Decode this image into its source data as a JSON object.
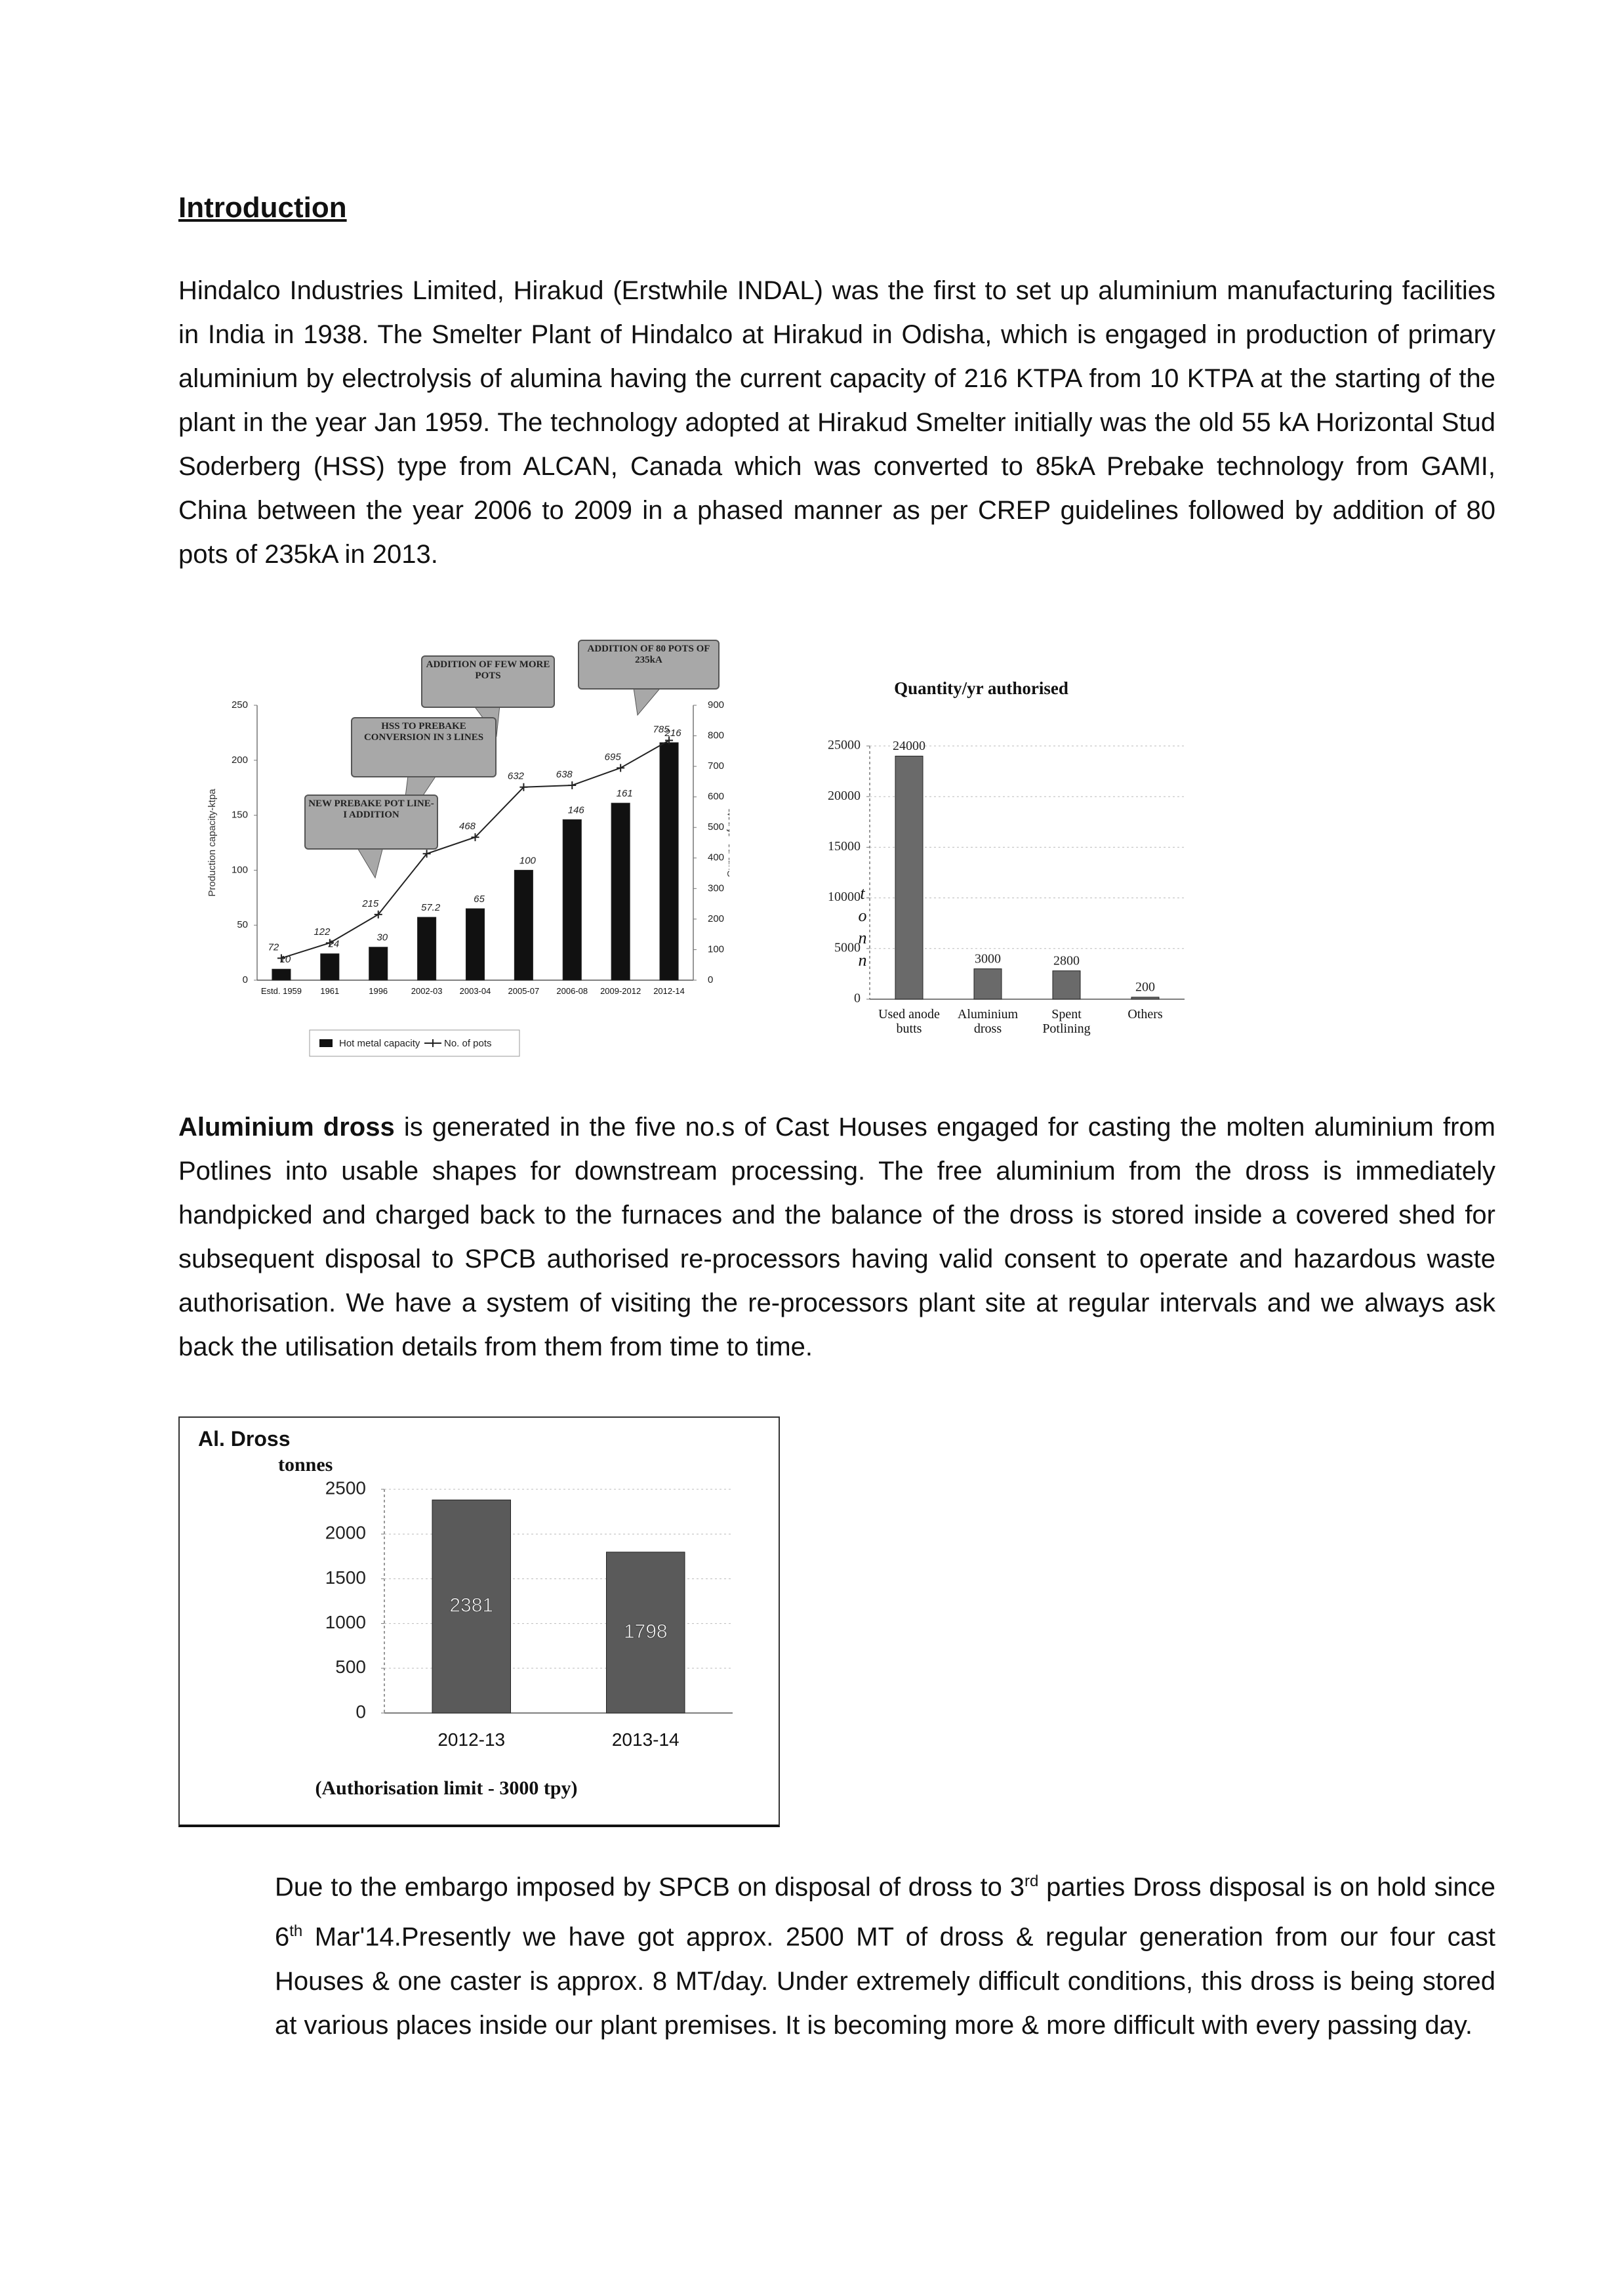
{
  "heading": "Introduction",
  "paragraph_1": "Hindalco Industries Limited, Hirakud (Erstwhile INDAL) was the first to set up aluminium manufacturing facilities in India in 1938. The Smelter Plant of Hindalco at Hirakud in Odisha, which is engaged in production of primary aluminium by electrolysis of alumina having the current capacity of 216 KTPA from 10 KTPA at the starting of the plant in the year Jan 1959. The technology adopted at Hirakud Smelter initially was the old 55 kA Horizontal Stud Soderberg (HSS) type from ALCAN, Canada which was converted to 85kA Prebake technology from GAMI, China between the year 2006 to 2009 in a phased manner as per CREP guidelines followed by addition of 80 pots of 235kA in 2013.",
  "paragraph_2": {
    "bold": "Aluminium dross",
    "text": " is generated in the five no.s of Cast Houses engaged for casting the molten aluminium from Potlines into usable shapes for downstream processing. The free aluminium from the dross is immediately handpicked and charged back to the furnaces and the balance of the dross is stored inside a covered shed for subsequent disposal to SPCB authorised re-processors having valid consent to operate and hazardous waste authorisation. We have a system of visiting the re-processors plant site at regular intervals and we always ask back the utilisation details from them from time to time."
  },
  "paragraph_3": [
    "Due to the embargo imposed by SPCB on disposal of dross to 3",
    "rd",
    " parties Dross disposal is on hold since 6",
    "th",
    " Mar'14.Presently we have got approx.  2500 MT of dross & regular generation from our four cast Houses & one caster is approx. 8 MT/day. Under extremely difficult conditions, this dross is being stored at various places inside our plant premises. It is becoming more & more difficult with every passing day."
  ],
  "chart_data": [
    {
      "type": "combo",
      "y_label": "Production capacity-ktpa",
      "y2_label": "Cum no. of pots",
      "categories": [
        "Estd. 1959",
        "1961",
        "1996",
        "2002-03",
        "2003-04",
        "2005-07",
        "2006-08",
        "2009-2012",
        "2012-14"
      ],
      "series": [
        {
          "name": "Hot metal capacity",
          "type": "bar",
          "color": "#111111",
          "values": [
            10,
            24,
            30,
            57.2,
            65,
            100,
            146,
            161,
            216
          ]
        },
        {
          "name": "No. of pots",
          "type": "line",
          "axis": "y2",
          "color": "#222222",
          "values": [
            72,
            122,
            215,
            414,
            468,
            632,
            638,
            695,
            785
          ]
        }
      ],
      "annotations": [
        "NEW PREBAKE POT LINE-I ADDITION",
        "HSS TO PREBAKE CONVERSION IN 3 LINES",
        "ADDITION OF FEW MORE POTS",
        "ADDITION OF 80 POTS OF 235kA"
      ],
      "ylim": [
        0,
        250
      ],
      "yticks": [
        0,
        50,
        100,
        150,
        200,
        250
      ],
      "y2lim": [
        0,
        900
      ],
      "y2ticks": [
        0,
        100,
        200,
        300,
        400,
        500,
        600,
        700,
        800,
        900
      ],
      "data_labels": true,
      "grid": false,
      "legend": "bottom"
    },
    {
      "type": "bar",
      "title": "Quantity/yr authorised",
      "y_label": "tonn",
      "categories": [
        "Used anode butts",
        "Aluminium dross",
        "Spent Potlining",
        "Others"
      ],
      "values": [
        24000,
        3000,
        2800,
        200
      ],
      "color": "#6a6a6a",
      "ylim": [
        0,
        25000
      ],
      "yticks": [
        0,
        5000,
        10000,
        15000,
        20000,
        25000
      ],
      "data_labels": true,
      "grid": true
    },
    {
      "type": "bar",
      "title": "Al. Dross",
      "y_label": "tonnes",
      "subtitle": "(Authorisation limit - 3000 tpy)",
      "categories": [
        "2012-13",
        "2013-14"
      ],
      "values": [
        2381,
        1798
      ],
      "color": "#5a5a5a",
      "ylim": [
        0,
        2500
      ],
      "yticks": [
        0,
        500,
        1000,
        1500,
        2000,
        2500
      ],
      "data_labels": true,
      "grid": true
    }
  ]
}
